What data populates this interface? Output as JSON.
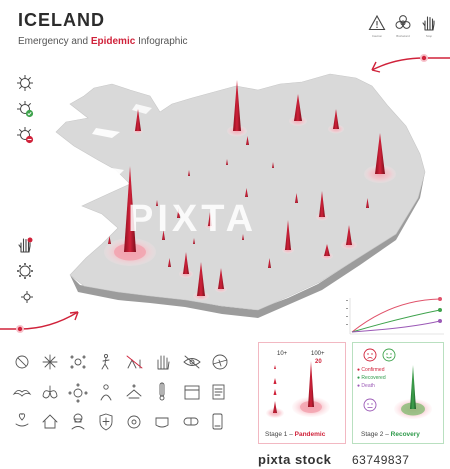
{
  "title": "ICELAND",
  "subtitle": {
    "before": "Emergency and ",
    "accent": "Epidemic",
    "after": " Infographic"
  },
  "top_icons": [
    {
      "name": "caution-icon",
      "caption": "Caution"
    },
    {
      "name": "biohazard-icon",
      "caption": "Biohazard"
    },
    {
      "name": "stop-hand-icon",
      "caption": "Stop"
    }
  ],
  "legend": {
    "stage1": {
      "count_low": "10+",
      "count_high": "100+",
      "count_high_value": "20",
      "label": "Stage 1 – ",
      "label_accent": "Pandemic"
    },
    "stage2": {
      "label": "Stage 2 – ",
      "label_accent": "Recovery",
      "confirmed": "Confirmed",
      "recovered": "Recovered",
      "death": "Death"
    }
  },
  "footer": {
    "logo": "pixta stock",
    "image_number": "63749837"
  },
  "colors": {
    "accent": "#d0223a",
    "map_land": "#d7d7d7",
    "map_side": "#9a9a9a",
    "recover": "#3fa34d",
    "death": "#9b59b6"
  }
}
